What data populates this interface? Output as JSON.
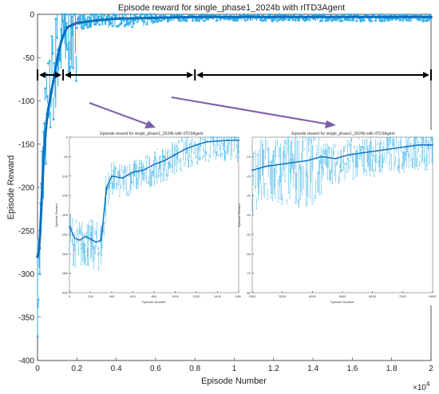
{
  "chart_data": [
    {
      "type": "line",
      "title": "Episode reward for single_phase1_2024b with rlTD3Agent",
      "xlabel": "Episode Number",
      "ylabel": "Episode Reward",
      "x_multiplier": "×10",
      "x_multiplier_exp": "4",
      "xlim": [
        0,
        20000
      ],
      "ylim": [
        -400,
        0
      ],
      "xticks": [
        "0",
        "0.2",
        "0.4",
        "0.6",
        "0.8",
        "1",
        "1.2",
        "1.4",
        "1.6",
        "1.8",
        "2"
      ],
      "yticks": [
        "0",
        "-50",
        "-100",
        "-150",
        "-200",
        "-250",
        "-300",
        "-350",
        "-400"
      ],
      "grid": false,
      "series": [
        {
          "style": "raw episode reward (light blue, dotted markers)",
          "x": [
            0,
            100,
            200,
            300,
            400,
            500,
            700,
            900,
            1100,
            1300,
            1500,
            2000,
            3000,
            4000,
            6000,
            8000,
            10000,
            12000,
            14000,
            16000,
            18000,
            20000
          ],
          "y": [
            -300,
            -280,
            -200,
            -150,
            -120,
            -100,
            -70,
            -45,
            -25,
            -12,
            -8,
            -6,
            -5,
            -4,
            -4,
            -3,
            -3,
            -3,
            -3,
            -3,
            -3,
            -3
          ]
        },
        {
          "style": "average reward (dark blue)",
          "x": [
            0,
            100,
            200,
            300,
            400,
            500,
            700,
            900,
            1100,
            1300,
            1500,
            2000,
            3000,
            4000,
            6000,
            8000,
            10000,
            12000,
            14000,
            16000,
            18000,
            20000
          ],
          "y": [
            -280,
            -270,
            -220,
            -170,
            -140,
            -115,
            -90,
            -65,
            -40,
            -25,
            -15,
            -10,
            -7,
            -5,
            -4,
            -3,
            -3,
            -3,
            -3,
            -3,
            -3,
            -3
          ]
        }
      ],
      "annotations": {
        "phase_boundaries_x": [
          0,
          1300,
          8000,
          20000
        ],
        "arrow_y": -70
      }
    },
    {
      "type": "line",
      "title": "Episode reward for single_phase1_2024b with rlTD3Agent",
      "xlabel": "Episode Number",
      "ylabel": "Episode Reward",
      "xlim": [
        0,
        1600
      ],
      "ylim": [
        -400,
        0
      ],
      "xticks": [
        "0",
        "200",
        "400",
        "600",
        "800",
        "1000",
        "1200",
        "1400",
        "1600"
      ],
      "yticks": [
        "0",
        "-50",
        "-100",
        "-150",
        "-200",
        "-250",
        "-300",
        "-350",
        "-400"
      ],
      "series": [
        {
          "style": "average reward",
          "x": [
            0,
            50,
            100,
            150,
            200,
            250,
            300,
            350,
            400,
            500,
            600,
            700,
            800,
            900,
            1000,
            1100,
            1200,
            1300,
            1400,
            1500,
            1600
          ],
          "y": [
            -230,
            -260,
            -265,
            -255,
            -262,
            -270,
            -265,
            -130,
            -100,
            -105,
            -90,
            -85,
            -70,
            -60,
            -45,
            -30,
            -20,
            -12,
            -10,
            -8,
            -8
          ]
        }
      ]
    },
    {
      "type": "line",
      "title": "Episode reward for single_phase1_2024b with rlTD3Agent",
      "xlabel": "Episode Number",
      "ylabel": "Episode Reward",
      "xlim": [
        1500,
        8000
      ],
      "ylim": [
        -80,
        0
      ],
      "xticks": [
        "2000",
        "3000",
        "4000",
        "5000",
        "6000",
        "7000",
        "8000"
      ],
      "yticks": [
        "-10",
        "-20",
        "-30",
        "-40",
        "-50",
        "-60",
        "-70",
        "-80"
      ],
      "series": [
        {
          "style": "average reward",
          "x": [
            1500,
            2000,
            2500,
            3000,
            3500,
            4000,
            4500,
            5000,
            5500,
            6000,
            6500,
            7000,
            7500,
            8000
          ],
          "y": [
            -17,
            -15,
            -14,
            -13,
            -12,
            -10,
            -11,
            -9,
            -8,
            -7,
            -6,
            -5,
            -4,
            -4
          ]
        }
      ]
    }
  ]
}
